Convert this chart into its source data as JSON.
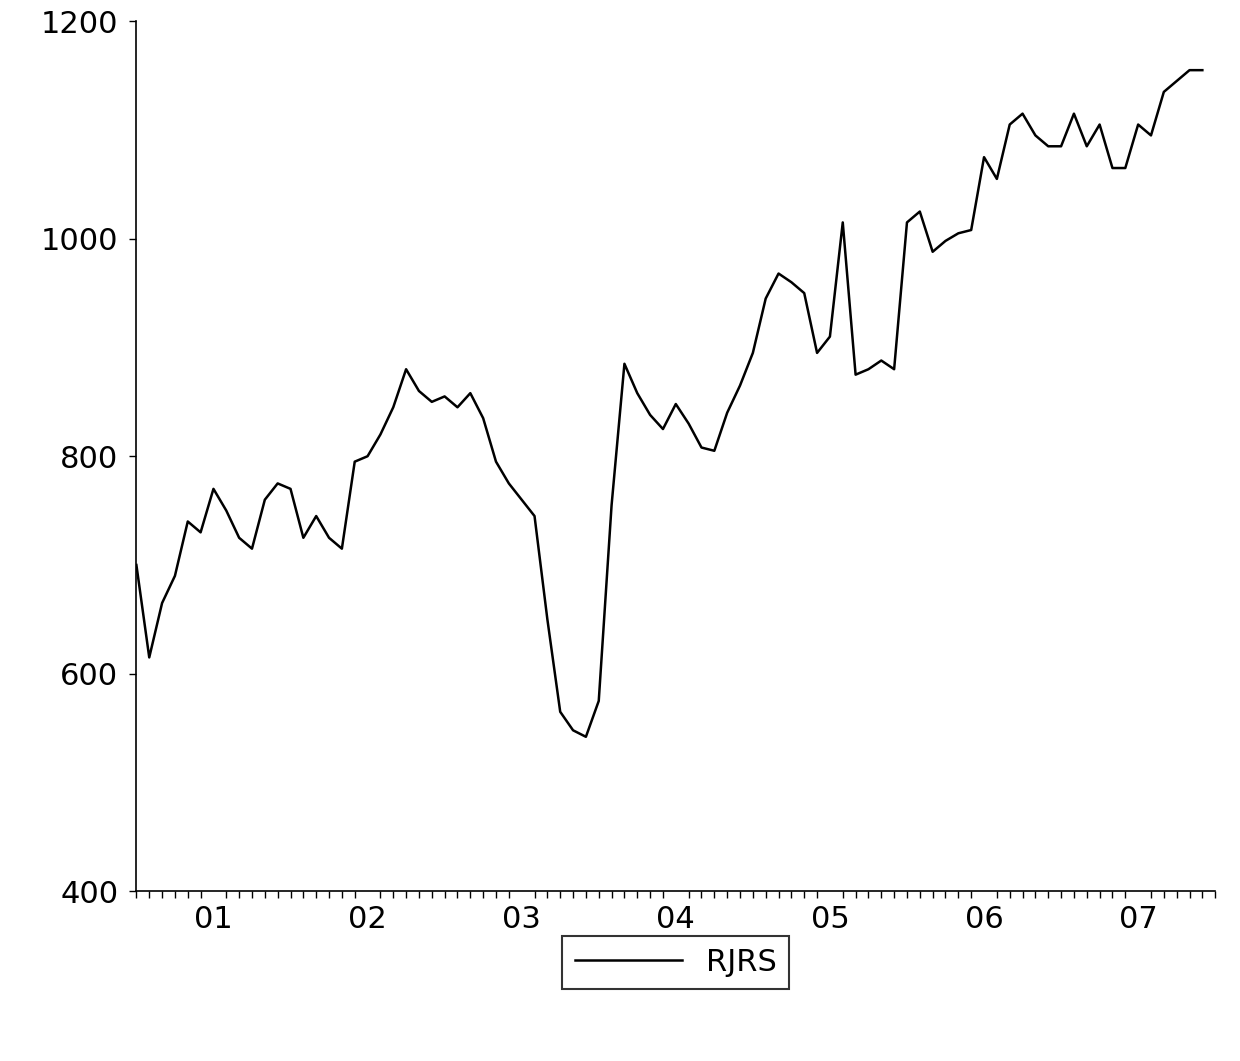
{
  "title": "",
  "ylabel": "",
  "xlabel": "",
  "ylim": [
    400,
    1200
  ],
  "xlim": [
    0,
    84
  ],
  "yticks": [
    400,
    600,
    800,
    1000,
    1200
  ],
  "xtick_labels": [
    "01",
    "02",
    "03",
    "04",
    "05",
    "06",
    "07"
  ],
  "xtick_positions": [
    6,
    18,
    30,
    42,
    54,
    66,
    78
  ],
  "legend_label": "RJRS",
  "line_color": "#000000",
  "line_width": 1.8,
  "background_color": "#ffffff",
  "values": [
    700,
    615,
    665,
    690,
    740,
    730,
    770,
    750,
    725,
    715,
    760,
    775,
    770,
    725,
    745,
    725,
    715,
    795,
    800,
    820,
    845,
    880,
    860,
    850,
    855,
    845,
    858,
    835,
    795,
    775,
    760,
    745,
    650,
    565,
    548,
    542,
    575,
    755,
    885,
    858,
    838,
    825,
    848,
    830,
    808,
    805,
    840,
    865,
    895,
    945,
    968,
    960,
    950,
    895,
    910,
    1015,
    875,
    880,
    888,
    880,
    1015,
    1025,
    988,
    998,
    1005,
    1008,
    1075,
    1055,
    1105,
    1115,
    1095,
    1085,
    1085,
    1115,
    1085,
    1105,
    1065,
    1065,
    1105,
    1095,
    1135,
    1145,
    1155,
    1155
  ]
}
